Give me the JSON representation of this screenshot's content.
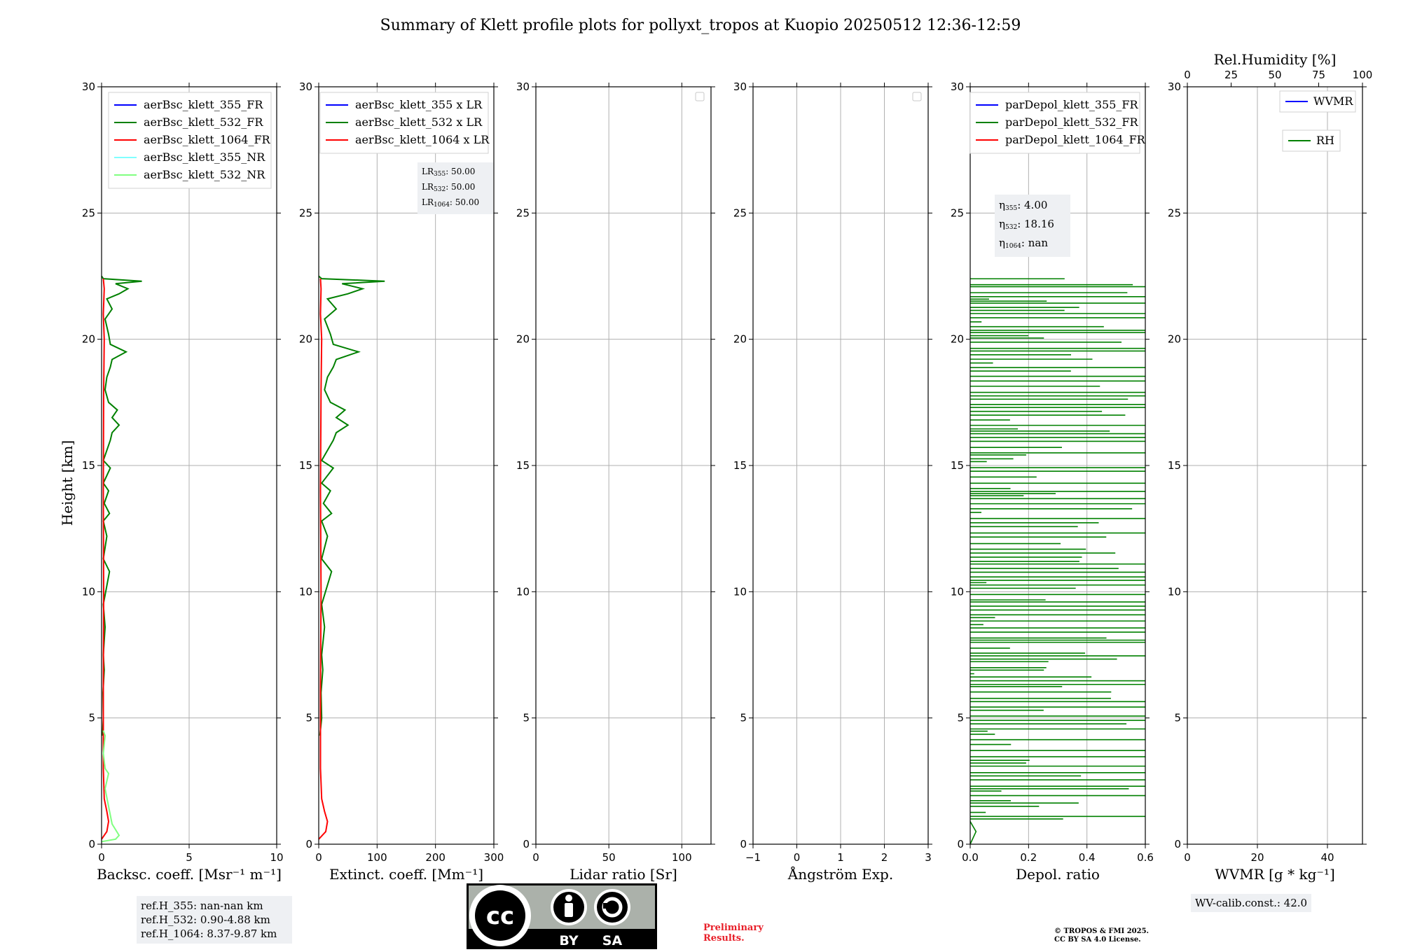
{
  "figure": {
    "title": "Summary of Klett profile plots for pollyxt_tropos at Kuopio 20250512 12:36-12:59",
    "ylabel": "Height [km]"
  },
  "colors": {
    "blue": "#0000ff",
    "green": "#008000",
    "red": "#ff0000",
    "cyan": "#80ffff",
    "lightgreen": "#80ff80",
    "grid": "#b0b0b0"
  },
  "chart_data": [
    {
      "type": "line",
      "id": "bsc",
      "xlabel": "Backsc. coeff. [Msr⁻¹ m⁻¹]",
      "xlim": [
        0,
        10
      ],
      "ylim": [
        0,
        30
      ],
      "xticks": [
        "0",
        "5",
        "10"
      ],
      "xtick_values": [
        0,
        5,
        10
      ],
      "yticks": [
        "0",
        "5",
        "10",
        "15",
        "20",
        "25",
        "30"
      ],
      "legend": [
        "aerBsc_klett_355_FR",
        "aerBsc_klett_532_FR",
        "aerBsc_klett_1064_FR",
        "aerBsc_klett_355_NR",
        "aerBsc_klett_532_NR"
      ],
      "legend_colors": [
        "#0000ff",
        "#008000",
        "#ff0000",
        "#80ffff",
        "#80ff80"
      ],
      "legend_placement": "top-right",
      "series": [
        {
          "name": "aerBsc_klett_532_FR",
          "color": "#008000",
          "points": [
            [
              0.05,
              4.3
            ],
            [
              0.1,
              5
            ],
            [
              0.08,
              6
            ],
            [
              0.15,
              6.9
            ],
            [
              0.1,
              7.5
            ],
            [
              0.2,
              8.6
            ],
            [
              0.1,
              9.5
            ],
            [
              0.45,
              10.8
            ],
            [
              0.1,
              11.3
            ],
            [
              0.3,
              12.2
            ],
            [
              0.1,
              12.8
            ],
            [
              0.45,
              13.1
            ],
            [
              0.15,
              13.5
            ],
            [
              0.4,
              14
            ],
            [
              0.1,
              14.3
            ],
            [
              0.5,
              14.9
            ],
            [
              0.1,
              15.2
            ],
            [
              0.5,
              16
            ],
            [
              0.6,
              16.3
            ],
            [
              1.0,
              16.6
            ],
            [
              0.6,
              16.9
            ],
            [
              0.9,
              17.2
            ],
            [
              0.4,
              17.5
            ],
            [
              0.2,
              18
            ],
            [
              0.3,
              18.5
            ],
            [
              0.5,
              18.9
            ],
            [
              0.6,
              19.2
            ],
            [
              1.4,
              19.5
            ],
            [
              0.5,
              19.8
            ],
            [
              0.4,
              20.2
            ],
            [
              0.2,
              20.8
            ],
            [
              0.6,
              21.2
            ],
            [
              0.3,
              21.6
            ],
            [
              1.0,
              21.8
            ],
            [
              1.5,
              22.0
            ],
            [
              0.8,
              22.2
            ],
            [
              2.3,
              22.3
            ],
            [
              0.1,
              22.4
            ],
            [
              0.0,
              22.5
            ]
          ]
        },
        {
          "name": "aerBsc_klett_1064_FR",
          "color": "#ff0000",
          "points": [
            [
              0.0,
              0.2
            ],
            [
              0.3,
              0.5
            ],
            [
              0.4,
              0.9
            ],
            [
              0.3,
              1.3
            ],
            [
              0.15,
              1.8
            ],
            [
              0.1,
              3
            ],
            [
              0.1,
              6
            ],
            [
              0.12,
              10
            ],
            [
              0.1,
              14
            ],
            [
              0.12,
              18
            ],
            [
              0.15,
              20
            ],
            [
              0.1,
              21
            ],
            [
              0.15,
              22
            ],
            [
              0.1,
              22.4
            ]
          ]
        },
        {
          "name": "aerBsc_klett_532_NR",
          "color": "#80ff80",
          "points": [
            [
              0.0,
              0.1
            ],
            [
              0.8,
              0.2
            ],
            [
              1.0,
              0.35
            ],
            [
              0.6,
              0.8
            ],
            [
              0.4,
              1.5
            ],
            [
              0.2,
              2.2
            ],
            [
              0.4,
              2.8
            ],
            [
              0.2,
              3.0
            ],
            [
              0.1,
              3.6
            ],
            [
              0.2,
              4.3
            ],
            [
              0.1,
              4.5
            ]
          ]
        }
      ]
    },
    {
      "type": "line",
      "id": "ext",
      "xlabel": "Extinct. coeff. [Mm⁻¹]",
      "xlim": [
        0,
        300
      ],
      "ylim": [
        0,
        30
      ],
      "xticks": [
        "0",
        "100",
        "200",
        "300"
      ],
      "xtick_values": [
        0,
        100,
        200,
        300
      ],
      "yticks": [
        "0",
        "5",
        "10",
        "15",
        "20",
        "25",
        "30"
      ],
      "legend": [
        "aerBsc_klett_355 x LR",
        "aerBsc_klett_532 x LR",
        "aerBsc_klett_1064 x LR"
      ],
      "legend_colors": [
        "#0000ff",
        "#008000",
        "#ff0000"
      ],
      "legend_placement": "top-right",
      "lr_text": [
        {
          "label": "LR",
          "sub": "355",
          "value": ": 50.00"
        },
        {
          "label": "LR",
          "sub": "532",
          "value": ": 50.00"
        },
        {
          "label": "LR",
          "sub": "1064",
          "value": ": 50.00"
        }
      ],
      "series": [
        {
          "name": "aerBsc_klett_532 x LR",
          "color": "#008000",
          "points": [
            [
              2,
              4.3
            ],
            [
              5,
              5
            ],
            [
              4,
              6
            ],
            [
              7,
              6.9
            ],
            [
              5,
              7.5
            ],
            [
              10,
              8.6
            ],
            [
              5,
              9.5
            ],
            [
              22,
              10.8
            ],
            [
              5,
              11.3
            ],
            [
              15,
              12.2
            ],
            [
              5,
              12.8
            ],
            [
              22,
              13.1
            ],
            [
              8,
              13.5
            ],
            [
              20,
              14
            ],
            [
              5,
              14.3
            ],
            [
              25,
              14.9
            ],
            [
              5,
              15.2
            ],
            [
              25,
              16
            ],
            [
              30,
              16.3
            ],
            [
              50,
              16.6
            ],
            [
              30,
              16.9
            ],
            [
              45,
              17.2
            ],
            [
              20,
              17.5
            ],
            [
              10,
              18
            ],
            [
              15,
              18.5
            ],
            [
              25,
              18.9
            ],
            [
              30,
              19.2
            ],
            [
              68,
              19.5
            ],
            [
              25,
              19.8
            ],
            [
              20,
              20.2
            ],
            [
              10,
              20.8
            ],
            [
              30,
              21.2
            ],
            [
              15,
              21.6
            ],
            [
              50,
              21.8
            ],
            [
              75,
              22.0
            ],
            [
              40,
              22.2
            ],
            [
              113,
              22.3
            ],
            [
              5,
              22.4
            ],
            [
              0,
              22.5
            ]
          ]
        },
        {
          "name": "aerBsc_klett_1064 x LR",
          "color": "#ff0000",
          "points": [
            [
              0,
              0.2
            ],
            [
              12,
              0.5
            ],
            [
              15,
              0.9
            ],
            [
              10,
              1.3
            ],
            [
              5,
              1.8
            ],
            [
              3,
              3
            ],
            [
              3,
              6
            ],
            [
              4,
              10
            ],
            [
              3,
              14
            ],
            [
              4,
              18
            ],
            [
              5,
              20
            ],
            [
              3,
              21
            ],
            [
              4,
              22
            ],
            [
              3,
              22.4
            ]
          ]
        }
      ]
    },
    {
      "type": "line",
      "id": "lr",
      "xlabel": "Lidar ratio [Sr]",
      "xlim": [
        0,
        120
      ],
      "ylim": [
        0,
        30
      ],
      "xticks": [
        "0",
        "50",
        "100"
      ],
      "xtick_values": [
        0,
        50,
        100
      ],
      "yticks": [
        "0",
        "5",
        "10",
        "15",
        "20",
        "25",
        "30"
      ],
      "legend": [],
      "legend_placement": "top-right",
      "series": []
    },
    {
      "type": "line",
      "id": "ang",
      "xlabel": "Ångström Exp.",
      "xlim": [
        -1,
        3
      ],
      "ylim": [
        0,
        30
      ],
      "xticks": [
        "−1",
        "0",
        "1",
        "2",
        "3"
      ],
      "xtick_values": [
        -1,
        0,
        1,
        2,
        3
      ],
      "yticks": [
        "0",
        "5",
        "10",
        "15",
        "20",
        "25",
        "30"
      ],
      "legend": [],
      "legend_placement": "top-right",
      "series": []
    },
    {
      "type": "line",
      "id": "dep",
      "xlabel": "Depol. ratio",
      "xlim": [
        0,
        0.6
      ],
      "ylim": [
        0,
        30
      ],
      "xticks": [
        "0.0",
        "0.2",
        "0.4",
        "0.6"
      ],
      "xtick_values": [
        0,
        0.2,
        0.4,
        0.6
      ],
      "yticks": [
        "0",
        "5",
        "10",
        "15",
        "20",
        "25",
        "30"
      ],
      "legend": [
        "parDepol_klett_355_FR",
        "parDepol_klett_532_FR",
        "parDepol_klett_1064_FR"
      ],
      "legend_colors": [
        "#0000ff",
        "#008000",
        "#ff0000"
      ],
      "legend_placement": "top-right",
      "eta_text": [
        {
          "label": "η",
          "sub": "355",
          "value": ": 4.00"
        },
        {
          "label": "η",
          "sub": "532",
          "value": ": 18.16"
        },
        {
          "label": "η",
          "sub": "1064",
          "value": ": nan"
        }
      ],
      "series": [
        {
          "name": "parDepol_klett_532_FR",
          "color": "#008000",
          "style": "spikes",
          "start_height": 1.0,
          "end_height": 22.4,
          "max_x": 0.6
        }
      ]
    },
    {
      "type": "line",
      "id": "wv",
      "xlabel": "WVMR [g * kg⁻¹]",
      "xlim": [
        0,
        50
      ],
      "ylim": [
        0,
        30
      ],
      "xticks": [
        "0",
        "20",
        "40"
      ],
      "xtick_values": [
        0,
        20,
        40
      ],
      "yticks": [
        "0",
        "5",
        "10",
        "15",
        "20",
        "25",
        "30"
      ],
      "top_xlabel": "Rel.Humidity [%]",
      "top_xlim": [
        0,
        100
      ],
      "top_xticks": [
        "0",
        "25",
        "50",
        "75",
        "100"
      ],
      "top_xtick_values": [
        0,
        25,
        50,
        75,
        100
      ],
      "legend": [
        "WVMR",
        "RH"
      ],
      "legend_colors": [
        "#0000ff",
        "#008000"
      ],
      "legend_placement": "top-right",
      "series": []
    }
  ],
  "refs": {
    "line1": "ref.H_355: nan-nan km",
    "line2": "ref.H_532: 0.90-4.88 km",
    "line3": "ref.H_1064: 8.37-9.87 km"
  },
  "wv_calib": "WV-calib.const.: 42.0",
  "license": {
    "by": "BY",
    "sa": "SA",
    "cc": "cc"
  },
  "preliminary": {
    "line1": "Preliminary",
    "line2": "Results."
  },
  "copyright": {
    "line1": "© TROPOS & FMI 2025.",
    "line2": "CC BY SA 4.0 License."
  }
}
